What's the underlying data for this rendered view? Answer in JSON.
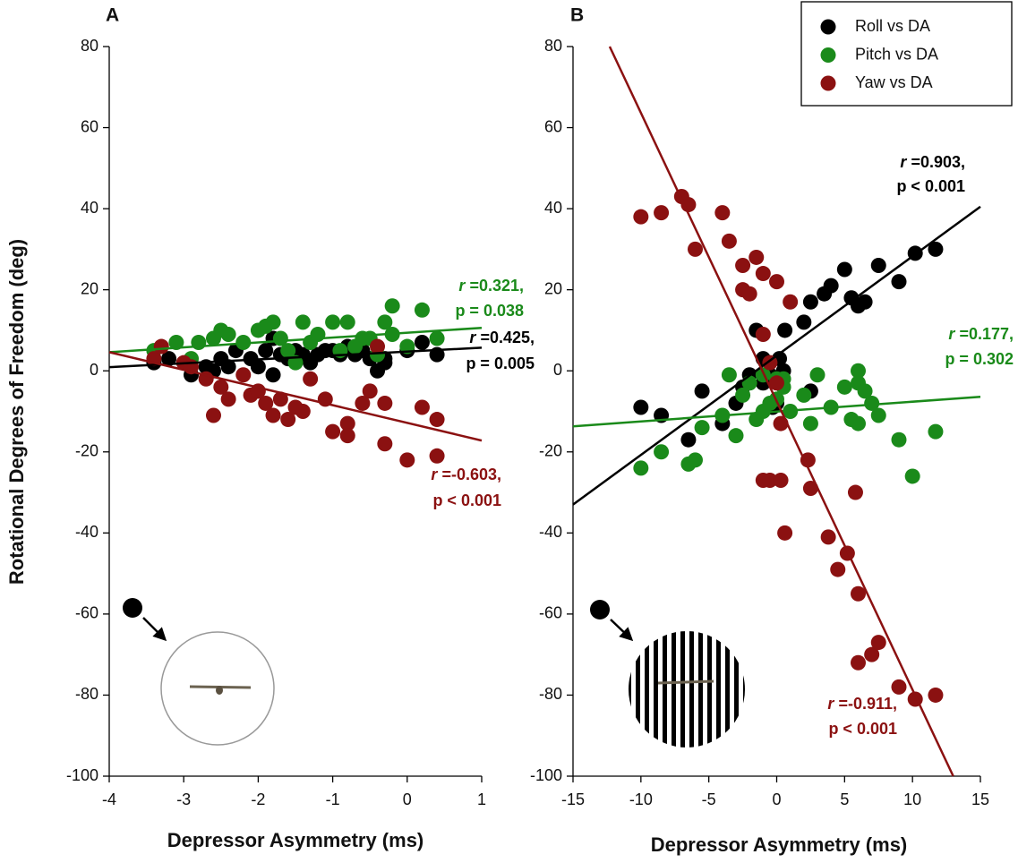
{
  "chart_data": [
    {
      "type": "scatter",
      "title": "A",
      "x_label": "Depressor Asymmetry (ms)",
      "y_label": "Rotational Degrees of Freedom (deg)",
      "xlim": [
        -4,
        1
      ],
      "ylim": [
        -100,
        80
      ],
      "xticks": [
        -4,
        -3,
        -2,
        -1,
        0,
        1
      ],
      "yticks": [
        -100,
        -80,
        -60,
        -40,
        -20,
        0,
        20,
        40,
        60,
        80
      ],
      "series": [
        {
          "color": "#000000",
          "x": [
            -3.4,
            -3.2,
            -2.9,
            -2.7,
            -2.6,
            -2.5,
            -2.4,
            -2.3,
            -2.1,
            -2,
            -1.9,
            -1.8,
            -1.8,
            -1.7,
            -1.6,
            -1.5,
            -1.4,
            -1.3,
            -1.2,
            -1.1,
            -1,
            -0.9,
            -0.8,
            -0.7,
            -0.6,
            -0.5,
            -0.4,
            -0.3,
            -0.3,
            0,
            0.2,
            0.4
          ],
          "y": [
            2,
            3,
            -1,
            1,
            0,
            3,
            1,
            5,
            3,
            1,
            5,
            8,
            -1,
            4,
            3,
            5,
            4,
            2,
            4,
            5,
            5,
            4,
            6,
            4,
            5,
            3,
            0,
            3,
            2,
            5,
            7,
            4
          ]
        },
        {
          "color": "#1a8a1a",
          "x": [
            -3.4,
            -3.1,
            -2.9,
            -2.8,
            -2.6,
            -2.5,
            -2.4,
            -2.2,
            -2,
            -1.9,
            -1.8,
            -1.7,
            -1.6,
            -1.5,
            -1.4,
            -1.3,
            -1.2,
            -1,
            -0.9,
            -0.8,
            -0.7,
            -0.6,
            -0.5,
            -0.4,
            -0.3,
            -0.2,
            -0.2,
            0,
            0.2,
            0.4
          ],
          "y": [
            5,
            7,
            3,
            7,
            8,
            10,
            9,
            7,
            10,
            11,
            12,
            8,
            5,
            2,
            12,
            7,
            9,
            12,
            5,
            12,
            6,
            8,
            8,
            4,
            12,
            9,
            16,
            6,
            15,
            8
          ]
        },
        {
          "color": "#8b1111",
          "x": [
            -3.4,
            -3.3,
            -3,
            -2.9,
            -2.7,
            -2.6,
            -2.5,
            -2.4,
            -2.2,
            -2.1,
            -2,
            -1.9,
            -1.8,
            -1.7,
            -1.6,
            -1.5,
            -1.4,
            -1.3,
            -1.1,
            -1,
            -0.8,
            -0.8,
            -0.6,
            -0.5,
            -0.4,
            -0.3,
            -0.3,
            0,
            0.2,
            0.4,
            0.4
          ],
          "y": [
            3,
            6,
            2,
            1,
            -2,
            -11,
            -4,
            -7,
            -1,
            -6,
            -5,
            -8,
            -11,
            -7,
            -12,
            -9,
            -10,
            -2,
            -7,
            -15,
            -13,
            -16,
            -8,
            -5,
            6,
            -8,
            -18,
            -22,
            -9,
            -21,
            -12
          ]
        }
      ],
      "fits": [
        {
          "color": "#1a8a1a",
          "x": [
            -4,
            1
          ],
          "y": [
            4.6,
            10.6
          ]
        },
        {
          "color": "#000000",
          "x": [
            -4,
            1
          ],
          "y": [
            0.9,
            5.7
          ]
        },
        {
          "color": "#8b1111",
          "x": [
            -4,
            1
          ],
          "y": [
            4.6,
            -17.2
          ]
        }
      ],
      "annotations": [
        {
          "color": "#1a8a1a",
          "symbol": "r",
          "value": " =0.321,",
          "p": "p = 0.038"
        },
        {
          "color": "#000000",
          "symbol": "r",
          "value": " =0.425,",
          "p": "p = 0.005"
        },
        {
          "color": "#8b1111",
          "symbol": "r",
          "value": " =-0.603,",
          "p": "p < 0.001"
        }
      ]
    },
    {
      "type": "scatter",
      "title": "B",
      "x_label": "Depressor Asymmetry (ms)",
      "xlim": [
        -15,
        15
      ],
      "ylim": [
        -100,
        80
      ],
      "xticks": [
        -15,
        -10,
        -5,
        0,
        5,
        10,
        15
      ],
      "yticks": [
        -100,
        -80,
        -60,
        -40,
        -20,
        0,
        20,
        40,
        60,
        80
      ],
      "legend": "upper right",
      "series": [
        {
          "name": "Roll vs DA",
          "color": "#000000",
          "x": [
            -10,
            -8.5,
            -6.5,
            -5.5,
            -4,
            -3,
            -2.5,
            -2,
            -1.5,
            -1,
            -0.5,
            0,
            0.2,
            0.5,
            0.6,
            2,
            2.5,
            2.5,
            3.5,
            4,
            5,
            5.5,
            6,
            6.5,
            7.5,
            9,
            10.2,
            11.7,
            -1,
            -0.3
          ],
          "y": [
            -9,
            -11,
            -17,
            -5,
            -13,
            -8,
            -4,
            -1,
            10,
            3,
            -1,
            -8,
            3,
            0,
            10,
            12,
            17,
            -5,
            19,
            21,
            25,
            18,
            16,
            17,
            26,
            22,
            29,
            30,
            -3,
            -9
          ]
        },
        {
          "name": "Pitch vs DA",
          "color": "#1a8a1a",
          "x": [
            -10,
            -8.5,
            -6.5,
            -6,
            -5.5,
            -4,
            -3.5,
            -3,
            -2.5,
            -2,
            -1.5,
            -1,
            -0.5,
            0,
            0.5,
            0.5,
            1,
            2,
            2.5,
            3,
            4,
            5,
            5.5,
            6,
            6,
            6.5,
            7,
            7.5,
            9,
            10,
            11.7,
            -1,
            0,
            6
          ],
          "y": [
            -24,
            -20,
            -23,
            -22,
            -14,
            -11,
            -1,
            -16,
            -6,
            -3,
            -12,
            -10,
            -8,
            -7,
            -4,
            -2,
            -10,
            -6,
            -13,
            -1,
            -9,
            -4,
            -12,
            -3,
            0,
            -5,
            -8,
            -11,
            -17,
            -26,
            -15,
            -1,
            -2,
            -13
          ]
        },
        {
          "name": "Yaw vs DA",
          "color": "#8b1111",
          "x": [
            -10,
            -8.5,
            -7,
            -6.5,
            -6,
            -4,
            -3.5,
            -2.5,
            -2.5,
            -2,
            -1.5,
            -1,
            0,
            1,
            -1,
            -0.5,
            0,
            0.3,
            -1,
            -0.5,
            0.3,
            0.6,
            2.3,
            2.5,
            3.8,
            4.5,
            5.2,
            5.8,
            6,
            6,
            7,
            7.5,
            9,
            10.2,
            11.7
          ],
          "y": [
            38,
            39,
            43,
            41,
            30,
            39,
            32,
            26,
            20,
            19,
            28,
            24,
            22,
            17,
            9,
            2,
            -3,
            -13,
            -27,
            -27,
            -27,
            -40,
            -22,
            -29,
            -41,
            -49,
            -45,
            -30,
            -55,
            -72,
            -70,
            -67,
            -78,
            -81,
            -80
          ]
        }
      ],
      "fits": [
        {
          "color": "#000000",
          "x": [
            -15,
            15
          ],
          "y": [
            -33,
            40.5
          ]
        },
        {
          "color": "#1a8a1a",
          "x": [
            -15,
            15
          ],
          "y": [
            -13.7,
            -6.4
          ]
        },
        {
          "color": "#8b1111",
          "x": [
            -12.3,
            13
          ],
          "y": [
            80,
            -100
          ]
        }
      ],
      "annotations": [
        {
          "color": "#000000",
          "symbol": "r",
          "value": " =0.903,",
          "p": "p < 0.001"
        },
        {
          "color": "#1a8a1a",
          "symbol": "r",
          "value": " =0.177,",
          "p": "p = 0.302"
        },
        {
          "color": "#8b1111",
          "symbol": "r",
          "value": " =-0.911,",
          "p": "p < 0.001"
        }
      ]
    }
  ]
}
